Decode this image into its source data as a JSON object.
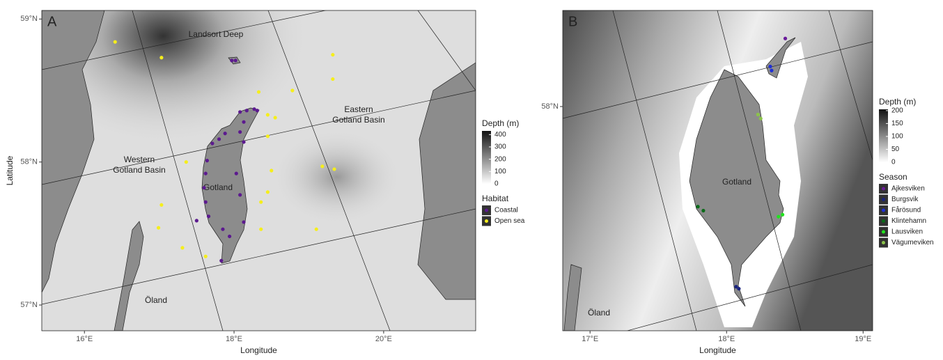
{
  "panels": [
    {
      "label": "A",
      "xlabel": "Longitude",
      "ylabel": "Latitude",
      "xlim": [
        15.43,
        21.23
      ],
      "ylim": [
        56.82,
        59.06
      ],
      "xticks": [
        {
          "value": 16,
          "label": "16°E"
        },
        {
          "value": 18,
          "label": "18°E"
        },
        {
          "value": 20,
          "label": "20°E"
        }
      ],
      "yticks": [
        {
          "value": 57,
          "label": "57°N"
        },
        {
          "value": 58,
          "label": "58°N"
        },
        {
          "value": 59,
          "label": "59°N"
        }
      ],
      "place_labels": [
        [
          "Landsort Deep"
        ],
        [
          "Western",
          "Gotland Basin"
        ],
        [
          "Eastern",
          "Gotland Basin"
        ],
        [
          "Gotland"
        ],
        [
          "Öland"
        ]
      ],
      "depth_legend": {
        "title": "Depth (m)",
        "range": [
          0,
          430
        ],
        "ticks": [
          0,
          100,
          200,
          300,
          400
        ]
      },
      "series_title": "Habitat",
      "series": [
        {
          "name": "Coastal",
          "color": "#5c1a8f",
          "lon": [
            17.97,
            18.02,
            18.08,
            18.17,
            18.27,
            18.31,
            18.13,
            18.08,
            18.13,
            17.88,
            17.8,
            17.71,
            17.64,
            17.62,
            17.6,
            17.62,
            17.66,
            17.85,
            17.94,
            17.83,
            18.03,
            18.08,
            18.13,
            17.5
          ],
          "lat": [
            58.71,
            58.71,
            58.35,
            58.36,
            58.37,
            58.36,
            58.28,
            58.21,
            58.14,
            58.2,
            58.16,
            58.13,
            58.01,
            57.92,
            57.82,
            57.72,
            57.62,
            57.53,
            57.48,
            57.31,
            57.92,
            57.77,
            57.58,
            57.59
          ]
        },
        {
          "name": "Open sea",
          "color": "#f5ee1c",
          "lon": [
            16.41,
            17.03,
            17.36,
            17.03,
            16.99,
            17.31,
            17.62,
            18.33,
            18.78,
            19.32,
            19.32,
            18.45,
            18.55,
            18.45,
            18.5,
            18.45,
            18.36,
            18.36,
            19.18,
            19.34,
            19.1
          ],
          "lat": [
            58.84,
            58.73,
            58.0,
            57.7,
            57.54,
            57.4,
            57.34,
            58.49,
            58.5,
            58.75,
            58.58,
            58.33,
            58.31,
            58.18,
            57.94,
            57.79,
            57.72,
            57.53,
            57.97,
            57.95,
            57.53
          ]
        }
      ]
    },
    {
      "label": "B",
      "xlabel": "Longitude",
      "xlim": [
        16.8,
        19.07
      ],
      "ylim": [
        56.88,
        58.48
      ],
      "xticks": [
        {
          "value": 17,
          "label": "17°E"
        },
        {
          "value": 18,
          "label": "18°E"
        },
        {
          "value": 19,
          "label": "19°E"
        }
      ],
      "yticks": [
        {
          "value": 58,
          "label": "58°N"
        }
      ],
      "place_labels": [
        [
          "Gotland"
        ],
        [
          "Öland"
        ]
      ],
      "depth_legend": {
        "title": "Depth (m)",
        "range": [
          0,
          205
        ],
        "ticks": [
          0,
          50,
          100,
          150,
          200
        ]
      },
      "series_title": "Season",
      "series": [
        {
          "name": "Ajkesviken",
          "color": "#6a1b9a",
          "lon": [
            18.43
          ],
          "lat": [
            58.34
          ]
        },
        {
          "name": "Burgsvik",
          "color": "#1a237e",
          "lon": [
            18.07,
            18.09
          ],
          "lat": [
            57.1,
            57.09
          ]
        },
        {
          "name": "Fårösund",
          "color": "#1f2fd6",
          "lon": [
            18.32,
            18.33
          ],
          "lat": [
            58.2,
            58.18
          ]
        },
        {
          "name": "Klintehamn",
          "color": "#0b6b1a",
          "lon": [
            17.79,
            17.83
          ],
          "lat": [
            57.5,
            57.48
          ]
        },
        {
          "name": "Lausviken",
          "color": "#22e31f",
          "lon": [
            18.38,
            18.41
          ],
          "lat": [
            57.45,
            57.46
          ]
        },
        {
          "name": "Vägumeviken",
          "color": "#8bc34a",
          "lon": [
            18.23,
            18.25
          ],
          "lat": [
            57.96,
            57.94
          ]
        }
      ]
    }
  ]
}
